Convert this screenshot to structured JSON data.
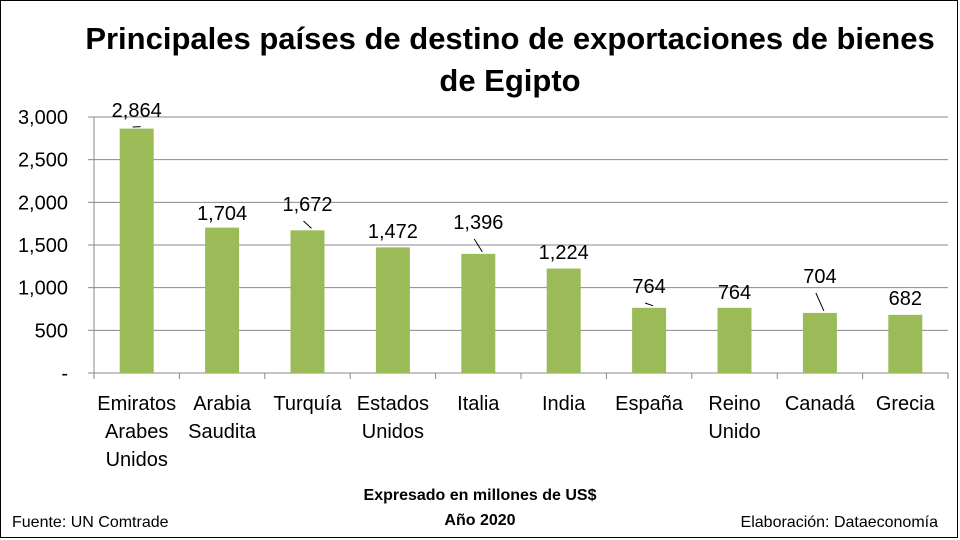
{
  "chart_data": {
    "type": "bar",
    "title": "Principales países de destino de exportaciones de bienes de Egipto",
    "categories": [
      "Emiratos Arabes Unidos",
      "Arabia Saudita",
      "Turquía",
      "Estados Unidos",
      "Italia",
      "India",
      "España",
      "Reino Unido",
      "Canadá",
      "Grecia"
    ],
    "values": [
      2864,
      1704,
      1672,
      1472,
      1396,
      1224,
      764,
      764,
      704,
      682
    ],
    "value_labels": [
      "2,864",
      "1,704",
      "1,672",
      "1,472",
      "1,396",
      "1,224",
      "764",
      "764",
      "704",
      "682"
    ],
    "ylim": [
      0,
      3000
    ],
    "yticks": [
      0,
      500,
      1000,
      1500,
      2000,
      2500,
      3000
    ],
    "ytick_labels": [
      "-",
      "500",
      "1,000",
      "1,500",
      "2,000",
      "2,500",
      "3,000"
    ],
    "bar_color": "#9bbb59",
    "grid": true,
    "xlabel": "",
    "ylabel": ""
  },
  "footer": {
    "unit": "Expresado en millones de US$",
    "year": "Año 2020",
    "source": "Fuente: UN Comtrade",
    "author": "Elaboración: Dataeconomía"
  }
}
